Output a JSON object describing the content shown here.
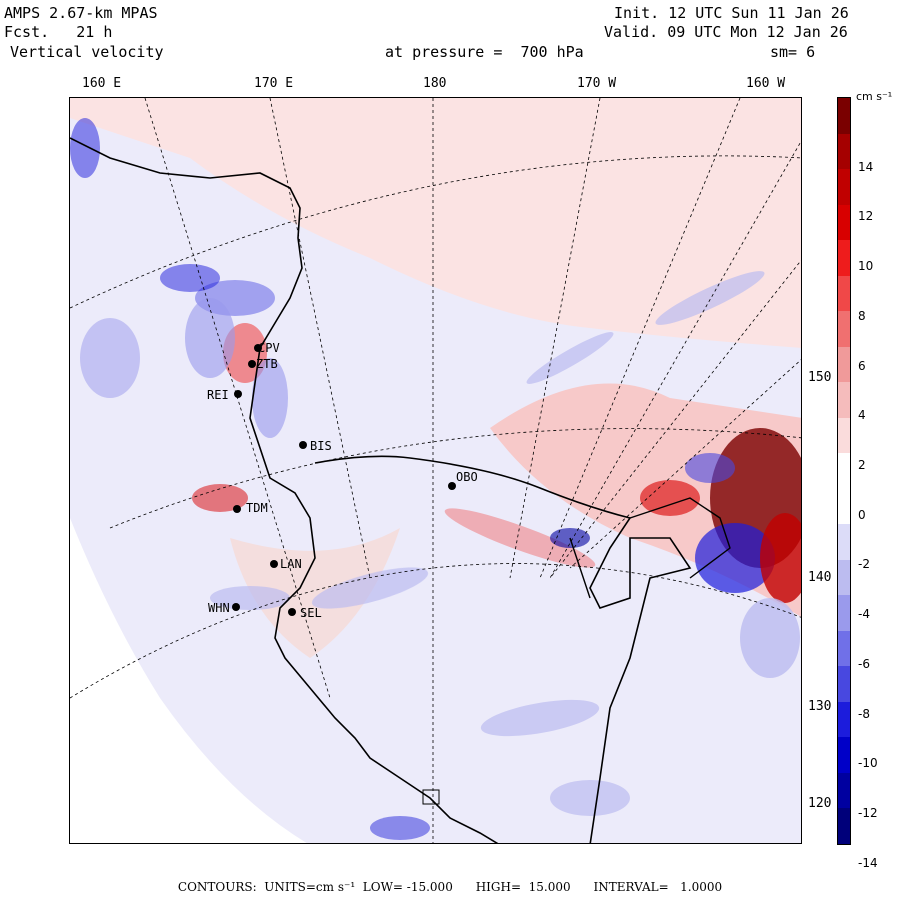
{
  "header": {
    "model": "AMPS 2.67-km MPAS",
    "forecast": "Fcst.   21 h",
    "field": "Vertical velocity",
    "pressure": "at pressure =  700 hPa",
    "init": "Init. 12 UTC Sun 11 Jan 26",
    "valid": "Valid. 09 UTC Mon 12 Jan 26",
    "smoothing": "sm= 6"
  },
  "longitude_labels": [
    "160 E",
    "170 E",
    "180",
    "170 W",
    "160 W"
  ],
  "latitude_labels": [
    "150 W",
    "140 W",
    "130 W",
    "120 W"
  ],
  "stations": [
    "CPV",
    "ZTB",
    "REI",
    "BIS",
    "TDM",
    "LAN",
    "WHN",
    "SEL",
    "OBO"
  ],
  "colorbar": {
    "units": "cm s⁻¹",
    "ticks": [
      "14",
      "12",
      "10",
      "8",
      "6",
      "4",
      "2",
      "0",
      "-2",
      "-4",
      "-6",
      "-8",
      "-10",
      "-12",
      "-14"
    ],
    "colors": [
      "#7a0000",
      "#a50000",
      "#c00000",
      "#d80000",
      "#ee1c1c",
      "#f04848",
      "#f07070",
      "#f09a9a",
      "#f5bcbc",
      "#fadcdc",
      "#ffffff",
      "#ffffff",
      "#dcdcf8",
      "#bcbcf0",
      "#9a9aec",
      "#7070e8",
      "#4848e0",
      "#1c1cdc",
      "#0000c8",
      "#0000a0",
      "#00007a"
    ]
  },
  "footer": "CONTOURS:  UNITS=cm s⁻¹  LOW= -15.000      HIGH=  15.000      INTERVAL=   1.0000"
}
